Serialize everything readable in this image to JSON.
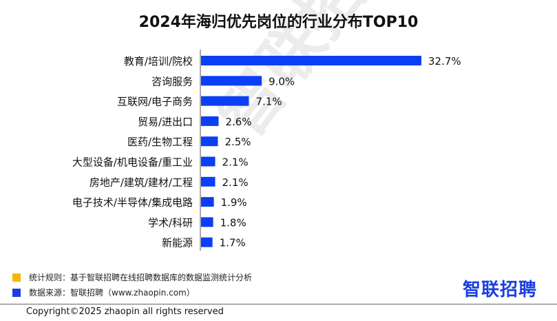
{
  "chart_data": {
    "type": "bar",
    "orientation": "horizontal",
    "title": "2024年海归优先岗位的行业分布TOP10",
    "categories": [
      "教育/培训/院校",
      "咨询服务",
      "互联网/电子商务",
      "贸易/进出口",
      "医药/生物工程",
      "大型设备/机电设备/重工业",
      "房地产/建筑/建材/工程",
      "电子技术/半导体/集成电路",
      "学术/科研",
      "新能源"
    ],
    "values": [
      32.7,
      9.0,
      7.1,
      2.6,
      2.5,
      2.1,
      2.1,
      1.9,
      1.8,
      1.7
    ],
    "value_labels": [
      "32.7%",
      "9.0%",
      "7.1%",
      "2.6%",
      "2.5%",
      "2.1%",
      "2.1%",
      "1.9%",
      "1.8%",
      "1.7%"
    ],
    "xlim": [
      0,
      35
    ],
    "grid": false,
    "bar_color": "#0a3ff5"
  },
  "watermark": "智联招聘",
  "notes": [
    {
      "text": "统计规则：基于智联招聘在线招聘数据库的数据监测统计分析",
      "color": "#f5b800"
    },
    {
      "text": "数据来源：智联招聘（www.zhaopin.com）",
      "color": "#1a3fe0"
    }
  ],
  "logo": "智联招聘",
  "copyright": "Copyright©2025 zhaopin all rights reserved"
}
